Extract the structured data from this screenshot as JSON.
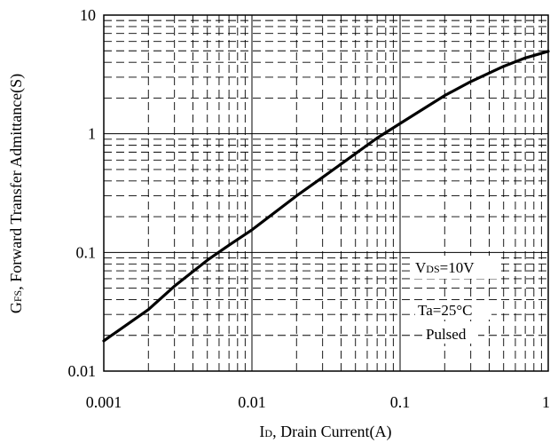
{
  "chart_data": {
    "type": "line",
    "title": "",
    "xscale": "log",
    "yscale": "log",
    "xlim": [
      0.001,
      1
    ],
    "ylim": [
      0.01,
      10
    ],
    "xticks": [
      0.001,
      0.01,
      0.1,
      1
    ],
    "yticks": [
      0.01,
      0.1,
      1,
      10
    ],
    "xtick_labels": [
      "0.001",
      "0.01",
      "0.1",
      "1"
    ],
    "ytick_labels": [
      "0.01",
      "0.1",
      "1",
      "10"
    ],
    "xlabel": {
      "main": "I",
      "sub": "D",
      "rest": ", Drain Current(A)"
    },
    "ylabel": {
      "main": "G",
      "sub": "FS",
      "rest": ", Forward Transfer Admittance(S)"
    },
    "grid": "major solid, minor dashed",
    "annotations": {
      "vds": {
        "main": "V",
        "sub": "DS",
        "rest": "=10V"
      },
      "ta": "Ta=25°C",
      "pulsed": "Pulsed"
    },
    "series": [
      {
        "x": [
          0.001,
          0.002,
          0.003,
          0.005,
          0.007,
          0.01,
          0.02,
          0.03,
          0.05,
          0.07,
          0.1,
          0.2,
          0.3,
          0.5,
          0.7,
          1.0
        ],
        "y": [
          0.018,
          0.033,
          0.052,
          0.086,
          0.115,
          0.155,
          0.3,
          0.43,
          0.68,
          0.92,
          1.22,
          2.1,
          2.75,
          3.7,
          4.35,
          4.95
        ]
      }
    ]
  }
}
